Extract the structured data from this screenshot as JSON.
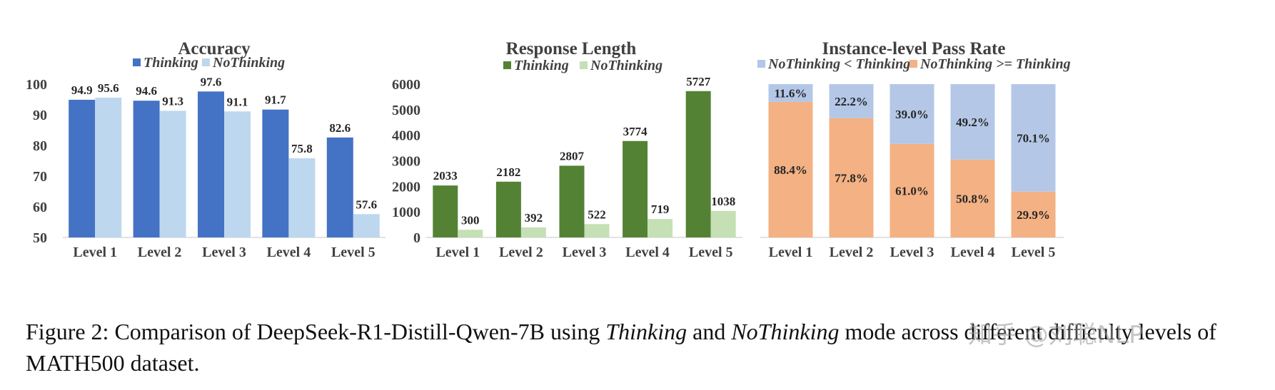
{
  "chart_data": [
    {
      "type": "bar",
      "title": "Accuracy",
      "categories": [
        "Level 1",
        "Level 2",
        "Level 3",
        "Level 4",
        "Level 5"
      ],
      "series": [
        {
          "name": "Thinking",
          "values": [
            94.9,
            94.6,
            97.6,
            91.7,
            82.6
          ],
          "color": "#4472c4"
        },
        {
          "name": "NoThinking",
          "values": [
            95.6,
            91.3,
            91.1,
            75.8,
            57.6
          ],
          "color": "#bdd7ee"
        }
      ],
      "ylim": [
        50,
        100
      ],
      "yticks": [
        50,
        60,
        70,
        80,
        90,
        100
      ],
      "legend": "top-center",
      "grid": false
    },
    {
      "type": "bar",
      "title": "Response Length",
      "categories": [
        "Level 1",
        "Level 2",
        "Level 3",
        "Level 4",
        "Level 5"
      ],
      "series": [
        {
          "name": "Thinking",
          "values": [
            2033,
            2182,
            2807,
            3774,
            5727
          ],
          "color": "#548235"
        },
        {
          "name": "NoThinking",
          "values": [
            300,
            392,
            522,
            719,
            1038
          ],
          "color": "#c5e0b4"
        }
      ],
      "ylim": [
        0,
        6000
      ],
      "yticks": [
        0,
        1000,
        2000,
        3000,
        4000,
        5000,
        6000
      ],
      "legend": "top-center",
      "grid": false
    },
    {
      "type": "bar",
      "stacked": true,
      "title": "Instance-level Pass Rate",
      "categories": [
        "Level 1",
        "Level 2",
        "Level 3",
        "Level 4",
        "Level 5"
      ],
      "series": [
        {
          "name": "NoThinking < Thinking",
          "values": [
            11.6,
            22.2,
            39.0,
            49.2,
            70.1
          ],
          "labels": [
            "11.6%",
            "22.2%",
            "39.0%",
            "49.2%",
            "70.1%"
          ],
          "color": "#b4c7e7"
        },
        {
          "name": "NoThinking >= Thinking",
          "values": [
            88.4,
            77.8,
            61.0,
            50.8,
            29.9
          ],
          "labels": [
            "88.4%",
            "77.8%",
            "61.0%",
            "50.8%",
            "29.9%"
          ],
          "color": "#f4b183"
        }
      ],
      "ylim": [
        0,
        100
      ],
      "legend": "top-center",
      "grid": false
    }
  ],
  "caption": {
    "prefix": "Figure 2: Comparison of DeepSeek-R1-Distill-Qwen-7B using ",
    "thinking": "Thinking",
    "and": " and ",
    "nothinking": "NoThinking",
    "suffix": " mode across different difficulty levels of MATH500 dataset."
  },
  "watermark": "知乎 @刘聪NLP"
}
